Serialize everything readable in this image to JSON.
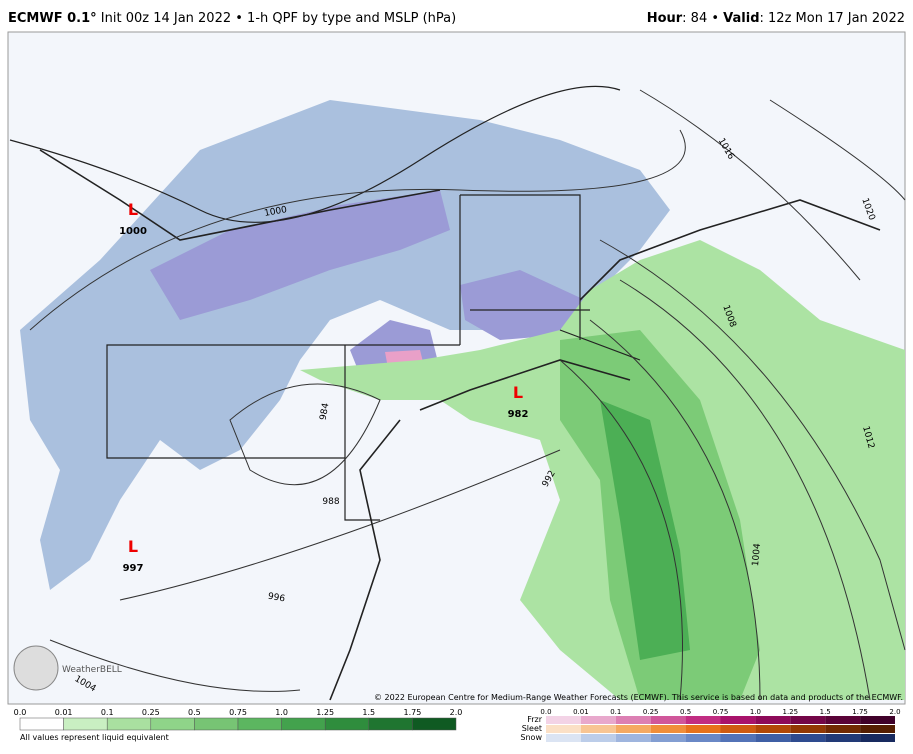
{
  "header": {
    "model": "ECMWF 0.1°",
    "description": "Init 00z 14 Jan 2022 • 1-h QPF by type and MSLP (hPa)",
    "hour_label": "Hour",
    "hour_value": ": 84 •",
    "valid_label": "Valid",
    "valid_value": ": 12z Mon 17 Jan 2022"
  },
  "map": {
    "lows": [
      {
        "symbol": "L",
        "pressure": "1000"
      },
      {
        "symbol": "L",
        "pressure": "982"
      },
      {
        "symbol": "L",
        "pressure": "997"
      }
    ],
    "isobar_labels": [
      "1000",
      "1016",
      "1020",
      "1008",
      "1012",
      "1004",
      "992",
      "984",
      "988",
      "996",
      "1004"
    ],
    "copyright": "© 2022 European Centre for Medium-Range Weather Forecasts (ECMWF). This service is based on data and products of the ECMWF.",
    "logo": "WeatherBELL"
  },
  "legend": {
    "rain_ticks": [
      "0.0",
      "0.01",
      "0.1",
      "0.25",
      "0.5",
      "0.75",
      "1.0",
      "1.25",
      "1.5",
      "1.75",
      "2.0"
    ],
    "note": "All values represent liquid equivalent",
    "types": [
      "Frzr",
      "Sleet",
      "Snow"
    ],
    "type_ticks": [
      "0.0",
      "0.01",
      "0.1",
      "0.25",
      "0.5",
      "0.75",
      "1.0",
      "1.25",
      "1.5",
      "1.75",
      "2.0"
    ]
  }
}
